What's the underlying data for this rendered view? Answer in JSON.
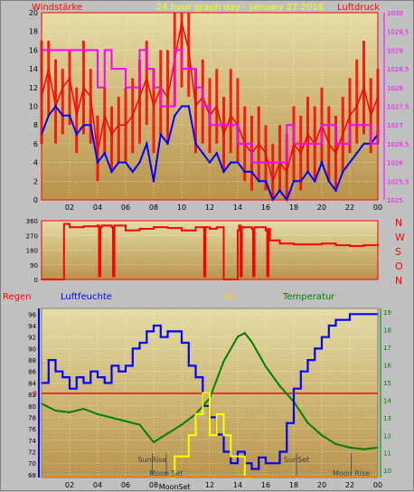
{
  "colors": {
    "background": "#c0c0c0",
    "plot_top": "#e4dca6",
    "plot_bottom": "#b9944b",
    "red": "#ff0000",
    "magenta": "#ff00ff",
    "blue": "#0000ff",
    "yellow": "#ffff00",
    "green": "#008000",
    "amber": "#ffd100",
    "grid": "#ffffff"
  },
  "chart_data": [
    {
      "type": "line",
      "title": "24 hour graph day - January 27 2016",
      "left_label": "Windstärke",
      "right_label": "Luftdruck",
      "x_ticks": [
        "02",
        "04",
        "06",
        "08",
        "10",
        "12",
        "14",
        "16",
        "18",
        "20",
        "22",
        "00"
      ],
      "y_left_ticks": [
        "0",
        "2",
        "4",
        "6",
        "8",
        "10",
        "12",
        "14",
        "16",
        "18",
        "20"
      ],
      "y_right_ticks": [
        "1025",
        "1025,5",
        "1026",
        "1026,5",
        "1027",
        "1027,5",
        "1028",
        "1028,5",
        "1029",
        "1029,5",
        "1030"
      ],
      "ylim_left": [
        0,
        20
      ],
      "ylim_right": [
        1025,
        1030
      ],
      "xlim": [
        0,
        24
      ],
      "grid": true,
      "series": [
        {
          "name": "Windstärke",
          "axis": "left",
          "color": "#ff0000",
          "x": [
            0,
            0.5,
            1,
            1.5,
            2,
            2.5,
            3,
            3.5,
            4,
            4.5,
            5,
            5.5,
            6,
            6.5,
            7,
            7.5,
            8,
            8.5,
            9,
            9.5,
            10,
            10.5,
            11,
            11.5,
            12,
            12.5,
            13,
            13.5,
            14,
            14.5,
            15,
            15.5,
            16,
            16.5,
            17,
            17.5,
            18,
            18.5,
            19,
            19.5,
            20,
            20.5,
            21,
            21.5,
            22,
            22.5,
            23,
            23.5,
            24
          ],
          "y": [
            11,
            14,
            10,
            12,
            13,
            9,
            12,
            11,
            5,
            9,
            7,
            8,
            8,
            9,
            11,
            13,
            10,
            12,
            11,
            15,
            19,
            16,
            10,
            11,
            9,
            10,
            7,
            9,
            8,
            6,
            5,
            6,
            5,
            2,
            4,
            3,
            6,
            5,
            7,
            6,
            8,
            6,
            5,
            7,
            9,
            10,
            12,
            9,
            11
          ],
          "y_high": [
            17,
            17,
            15,
            14,
            16,
            12,
            17,
            14,
            9,
            12,
            10,
            11,
            12,
            13,
            15,
            17,
            14,
            16,
            16,
            20,
            20,
            20,
            14,
            15,
            13,
            14,
            11,
            14,
            13,
            10,
            9,
            10,
            8,
            6,
            8,
            7,
            10,
            9,
            11,
            10,
            12,
            10,
            9,
            11,
            13,
            15,
            17,
            13,
            14
          ],
          "y_low": [
            6,
            9,
            6,
            7,
            8,
            5,
            7,
            6,
            2,
            5,
            3,
            4,
            4,
            5,
            6,
            8,
            5,
            7,
            6,
            10,
            12,
            11,
            5,
            6,
            5,
            6,
            3,
            5,
            4,
            2,
            1,
            2,
            1,
            0,
            1,
            0,
            2,
            1,
            3,
            2,
            4,
            2,
            1,
            3,
            5,
            6,
            7,
            5,
            6
          ]
        },
        {
          "name": "Windstärke (average)",
          "axis": "left",
          "color": "#0000ff",
          "x": [
            0,
            0.5,
            1,
            1.5,
            2,
            2.5,
            3,
            3.5,
            4,
            4.5,
            5,
            5.5,
            6,
            6.5,
            7,
            7.5,
            8,
            8.5,
            9,
            9.5,
            10,
            10.5,
            11,
            11.5,
            12,
            12.5,
            13,
            13.5,
            14,
            14.5,
            15,
            15.5,
            16,
            16.5,
            17,
            17.5,
            18,
            18.5,
            19,
            19.5,
            20,
            20.5,
            21,
            21.5,
            22,
            22.5,
            23,
            23.5,
            24
          ],
          "y": [
            7,
            9,
            10,
            9,
            9,
            7,
            8,
            8,
            4,
            5,
            3,
            4,
            4,
            3,
            4,
            6,
            2,
            7,
            6,
            9,
            10,
            10,
            6,
            5,
            4,
            5,
            3,
            4,
            4,
            3,
            3,
            2,
            2,
            0,
            1,
            0,
            2,
            2,
            3,
            2,
            4,
            2,
            1,
            3,
            4,
            5,
            6,
            6,
            7
          ]
        },
        {
          "name": "Luftdruck",
          "axis": "right",
          "color": "#ff00ff",
          "x": [
            0,
            0.5,
            1,
            1.5,
            2,
            2.5,
            3,
            3.5,
            4,
            4.5,
            5,
            5.5,
            6,
            6.5,
            7,
            7.5,
            8,
            8.5,
            9,
            9.5,
            10,
            10.5,
            11,
            11.5,
            12,
            12.5,
            13,
            13.5,
            14,
            14.5,
            15,
            15.5,
            16,
            16.5,
            17,
            17.5,
            18,
            18.5,
            19,
            19.5,
            20,
            20.5,
            21,
            21.5,
            22,
            22.5,
            23,
            23.5,
            24
          ],
          "y": [
            1029,
            1029,
            1029,
            1029,
            1029,
            1029,
            1029,
            1029,
            1028,
            1029,
            1028.5,
            1028.5,
            1028,
            1028,
            1029,
            1028.5,
            1028,
            1027.5,
            1027.5,
            1029,
            1028.5,
            1028.5,
            1028,
            1027.5,
            1027,
            1027,
            1027,
            1027,
            1026.5,
            1026.5,
            1026,
            1026,
            1026,
            1026,
            1026,
            1027,
            1026.5,
            1026.5,
            1026.5,
            1026.5,
            1027,
            1027,
            1026.5,
            1026.5,
            1027,
            1027,
            1027,
            1026.5,
            1027
          ]
        }
      ]
    },
    {
      "type": "line",
      "y_ticks": [
        "0",
        "90",
        "180",
        "270",
        "360"
      ],
      "ylim": [
        0,
        360
      ],
      "xlim": [
        0,
        24
      ],
      "right_labels": [
        "N",
        "W",
        "S",
        "O",
        "N"
      ],
      "series": [
        {
          "name": "Windrichtung",
          "color": "#ff0000",
          "x": [
            0,
            1.5,
            1.6,
            2,
            3,
            4,
            4.1,
            4.2,
            4.3,
            5,
            5.1,
            5.2,
            6,
            7,
            8,
            9,
            10,
            11,
            11.5,
            11.6,
            11.7,
            12,
            12.5,
            13,
            13,
            14,
            14.1,
            14.2,
            14.3,
            15,
            15.1,
            15.2,
            16,
            16.1,
            16.2,
            16.3,
            17,
            18,
            19,
            20,
            21,
            22,
            23,
            24
          ],
          "y": [
            0,
            0,
            340,
            320,
            325,
            330,
            20,
            320,
            330,
            320,
            20,
            330,
            300,
            310,
            320,
            315,
            300,
            320,
            320,
            20,
            320,
            310,
            320,
            300,
            0,
            300,
            330,
            20,
            320,
            310,
            20,
            320,
            300,
            20,
            310,
            240,
            220,
            215,
            215,
            220,
            210,
            205,
            210,
            215
          ]
        }
      ]
    },
    {
      "type": "line",
      "left_label": "Regen",
      "label_humidity": "Luftfeuchte",
      "label_uv": "UV",
      "label_temperature": "Temperatur",
      "rain_value_label": "0",
      "y_ticks_humidity": [
        "68",
        "70",
        "72",
        "74",
        "76",
        "78",
        "80",
        "82",
        "84",
        "86",
        "88",
        "90",
        "92",
        "94",
        "96"
      ],
      "y_ticks_temperature": [
        "10",
        "11",
        "12",
        "13",
        "14",
        "15",
        "16",
        "17",
        "18",
        "19"
      ],
      "ylim_humidity": [
        67.5,
        97
      ],
      "ylim_temperature": [
        9.6,
        19.2
      ],
      "x_ticks": [
        "02",
        "04",
        "06",
        "08",
        "10",
        "12",
        "14",
        "16",
        "18",
        "20",
        "22",
        "00"
      ],
      "xlim": [
        0,
        24
      ],
      "annotations": {
        "sunrise": "SunRise",
        "sunset": "SunSet",
        "moonset": "Moon Set",
        "moonrise": "Moon Rise",
        "moon_combined": "MoonSet"
      },
      "series": [
        {
          "name": "Luftfeuchte",
          "color": "#0000ff",
          "x": [
            0,
            0.5,
            1,
            1.5,
            2,
            2.5,
            3,
            3.5,
            4,
            4.5,
            5,
            5.5,
            6,
            6.5,
            7,
            7.5,
            8,
            8.5,
            9,
            9.5,
            10,
            10.5,
            11,
            11.5,
            12,
            12.5,
            13,
            13.5,
            14,
            14.5,
            15,
            15.5,
            16,
            16.5,
            17,
            17.5,
            18,
            18.5,
            19,
            19.5,
            20,
            20.5,
            21,
            21.5,
            22,
            22.5,
            23,
            23.5,
            24
          ],
          "y": [
            84,
            88,
            86,
            85,
            83,
            85,
            84,
            86,
            85,
            84,
            87,
            86,
            87,
            90,
            91,
            93,
            94,
            92,
            93,
            93,
            91,
            87,
            85,
            80,
            78,
            75,
            72,
            70,
            72,
            70,
            69,
            71,
            70,
            70,
            72,
            77,
            83,
            86,
            88,
            90,
            92,
            94,
            95,
            95,
            96,
            96,
            96,
            96,
            96
          ]
        },
        {
          "name": "Temperatur",
          "color": "#008000",
          "x": [
            0,
            1,
            2,
            3,
            4,
            5,
            6,
            7,
            8,
            9,
            10,
            11,
            12,
            13,
            14,
            14.5,
            15,
            16,
            17,
            18,
            19,
            20,
            21,
            22,
            23,
            24
          ],
          "y": [
            13.8,
            13.4,
            13.3,
            13.5,
            13.2,
            13.0,
            12.8,
            12.6,
            11.6,
            12.1,
            12.6,
            13.2,
            14.1,
            16.2,
            17.6,
            17.8,
            17.3,
            15.9,
            14.8,
            13.9,
            12.7,
            12.0,
            11.5,
            11.3,
            11.2,
            11.3
          ]
        },
        {
          "name": "UV",
          "color": "#ffff00",
          "x": [
            9,
            9.5,
            10,
            10.5,
            11,
            11.5,
            12,
            12.5,
            13,
            13.5,
            14,
            14.5,
            15
          ],
          "y": [
            0,
            1,
            1,
            2,
            3,
            4,
            2,
            3,
            2,
            1,
            1,
            0,
            0
          ]
        }
      ]
    }
  ]
}
